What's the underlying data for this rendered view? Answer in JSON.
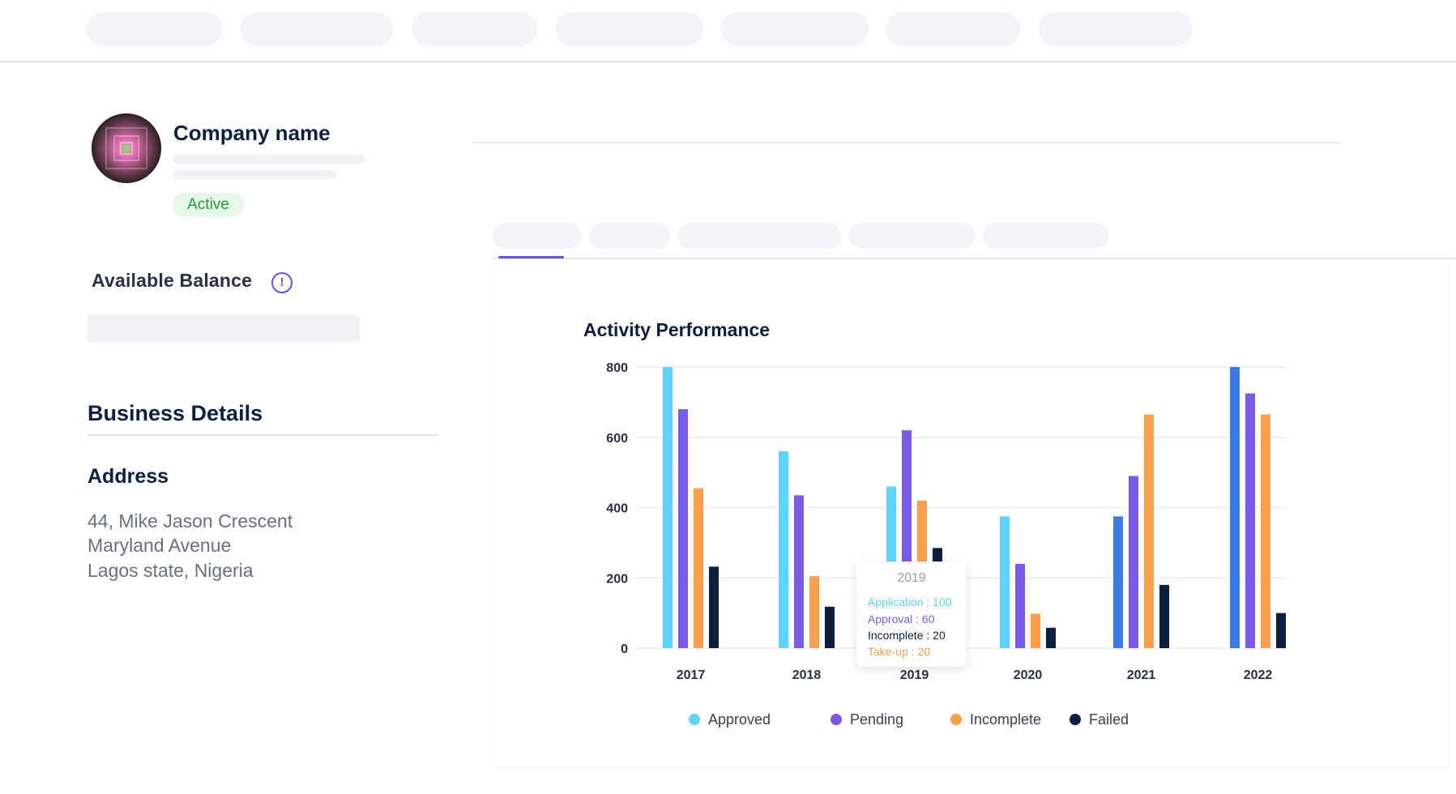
{
  "header": {
    "nav_count": 7
  },
  "profile": {
    "company_name": "Company name",
    "status": "Active"
  },
  "balance": {
    "label": "Available Balance",
    "info_icon": "!"
  },
  "business": {
    "title": "Business Details",
    "address_title": "Address",
    "address_lines": [
      "44, Mike Jason Crescent",
      "Maryland Avenue",
      "Lagos state, Nigeria"
    ]
  },
  "colors": {
    "approved": "#5fd3fa",
    "approved_alt": "#3b7be8",
    "pending": "#7a5ae6",
    "incomplete": "#fd9e4a",
    "failed": "#0d1f3f",
    "accent": "#6b4ee6",
    "success": "#1f9e35"
  },
  "chart_data": {
    "type": "bar",
    "title": "Activity Performance",
    "categories": [
      "2017",
      "2018",
      "2019",
      "2020",
      "2021",
      "2022"
    ],
    "series": [
      {
        "name": "Approved",
        "values": [
          800,
          560,
          460,
          375,
          375,
          800
        ]
      },
      {
        "name": "Pending",
        "values": [
          680,
          435,
          620,
          240,
          490,
          725
        ]
      },
      {
        "name": "Incomplete",
        "values": [
          455,
          205,
          420,
          98,
          665,
          665
        ]
      },
      {
        "name": "Failed",
        "values": [
          232,
          118,
          285,
          58,
          180,
          100
        ]
      }
    ],
    "ylim": [
      0,
      800
    ],
    "yticks": [
      "0",
      "200",
      "400",
      "600",
      "800"
    ],
    "grid": true,
    "legend": "bottom",
    "tooltip": {
      "year": "2019",
      "lines": [
        "Application : 100",
        "Approval : 60",
        "Incomplete : 20",
        "Take-up : 20"
      ]
    }
  }
}
